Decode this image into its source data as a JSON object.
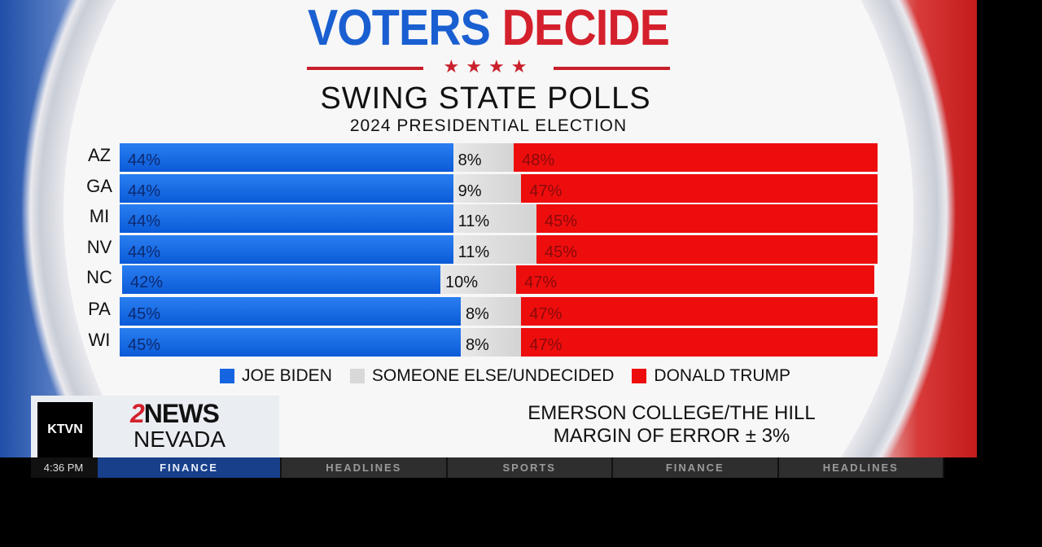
{
  "header": {
    "title_part1": "VOTERS",
    "title_part2": "DECIDE",
    "stars": "★★★★",
    "subtitle": "SWING STATE POLLS",
    "subtitle2": "2024 PRESIDENTIAL ELECTION"
  },
  "chart_data": {
    "type": "bar",
    "stacked": true,
    "orientation": "horizontal",
    "title": "SWING STATE POLLS",
    "subtitle": "2024 PRESIDENTIAL ELECTION",
    "categories": [
      "AZ",
      "GA",
      "MI",
      "NV",
      "NC",
      "PA",
      "WI"
    ],
    "series": [
      {
        "name": "JOE BIDEN",
        "color": "#1565e0",
        "values": [
          44,
          44,
          44,
          44,
          42,
          45,
          45
        ]
      },
      {
        "name": "SOMEONE ELSE/UNDECIDED",
        "color": "#d8d8d8",
        "values": [
          8,
          9,
          11,
          11,
          10,
          8,
          8
        ]
      },
      {
        "name": "DONALD TRUMP",
        "color": "#ee0d0d",
        "values": [
          48,
          47,
          45,
          45,
          47,
          47,
          47
        ]
      }
    ],
    "legend": "bottom"
  },
  "source": {
    "line1": "EMERSON COLLEGE/THE HILL",
    "line2": "MARGIN OF ERROR ± 3%"
  },
  "branding": {
    "station": "KTVN",
    "news_num": "2",
    "news": "NEWS",
    "region": "NEVADA"
  },
  "ticker": {
    "time": "4:36 PM",
    "items": [
      "FINANCE",
      "HEADLINES",
      "SPORTS",
      "FINANCE",
      "HEADLINES"
    ],
    "active_index": 0
  }
}
